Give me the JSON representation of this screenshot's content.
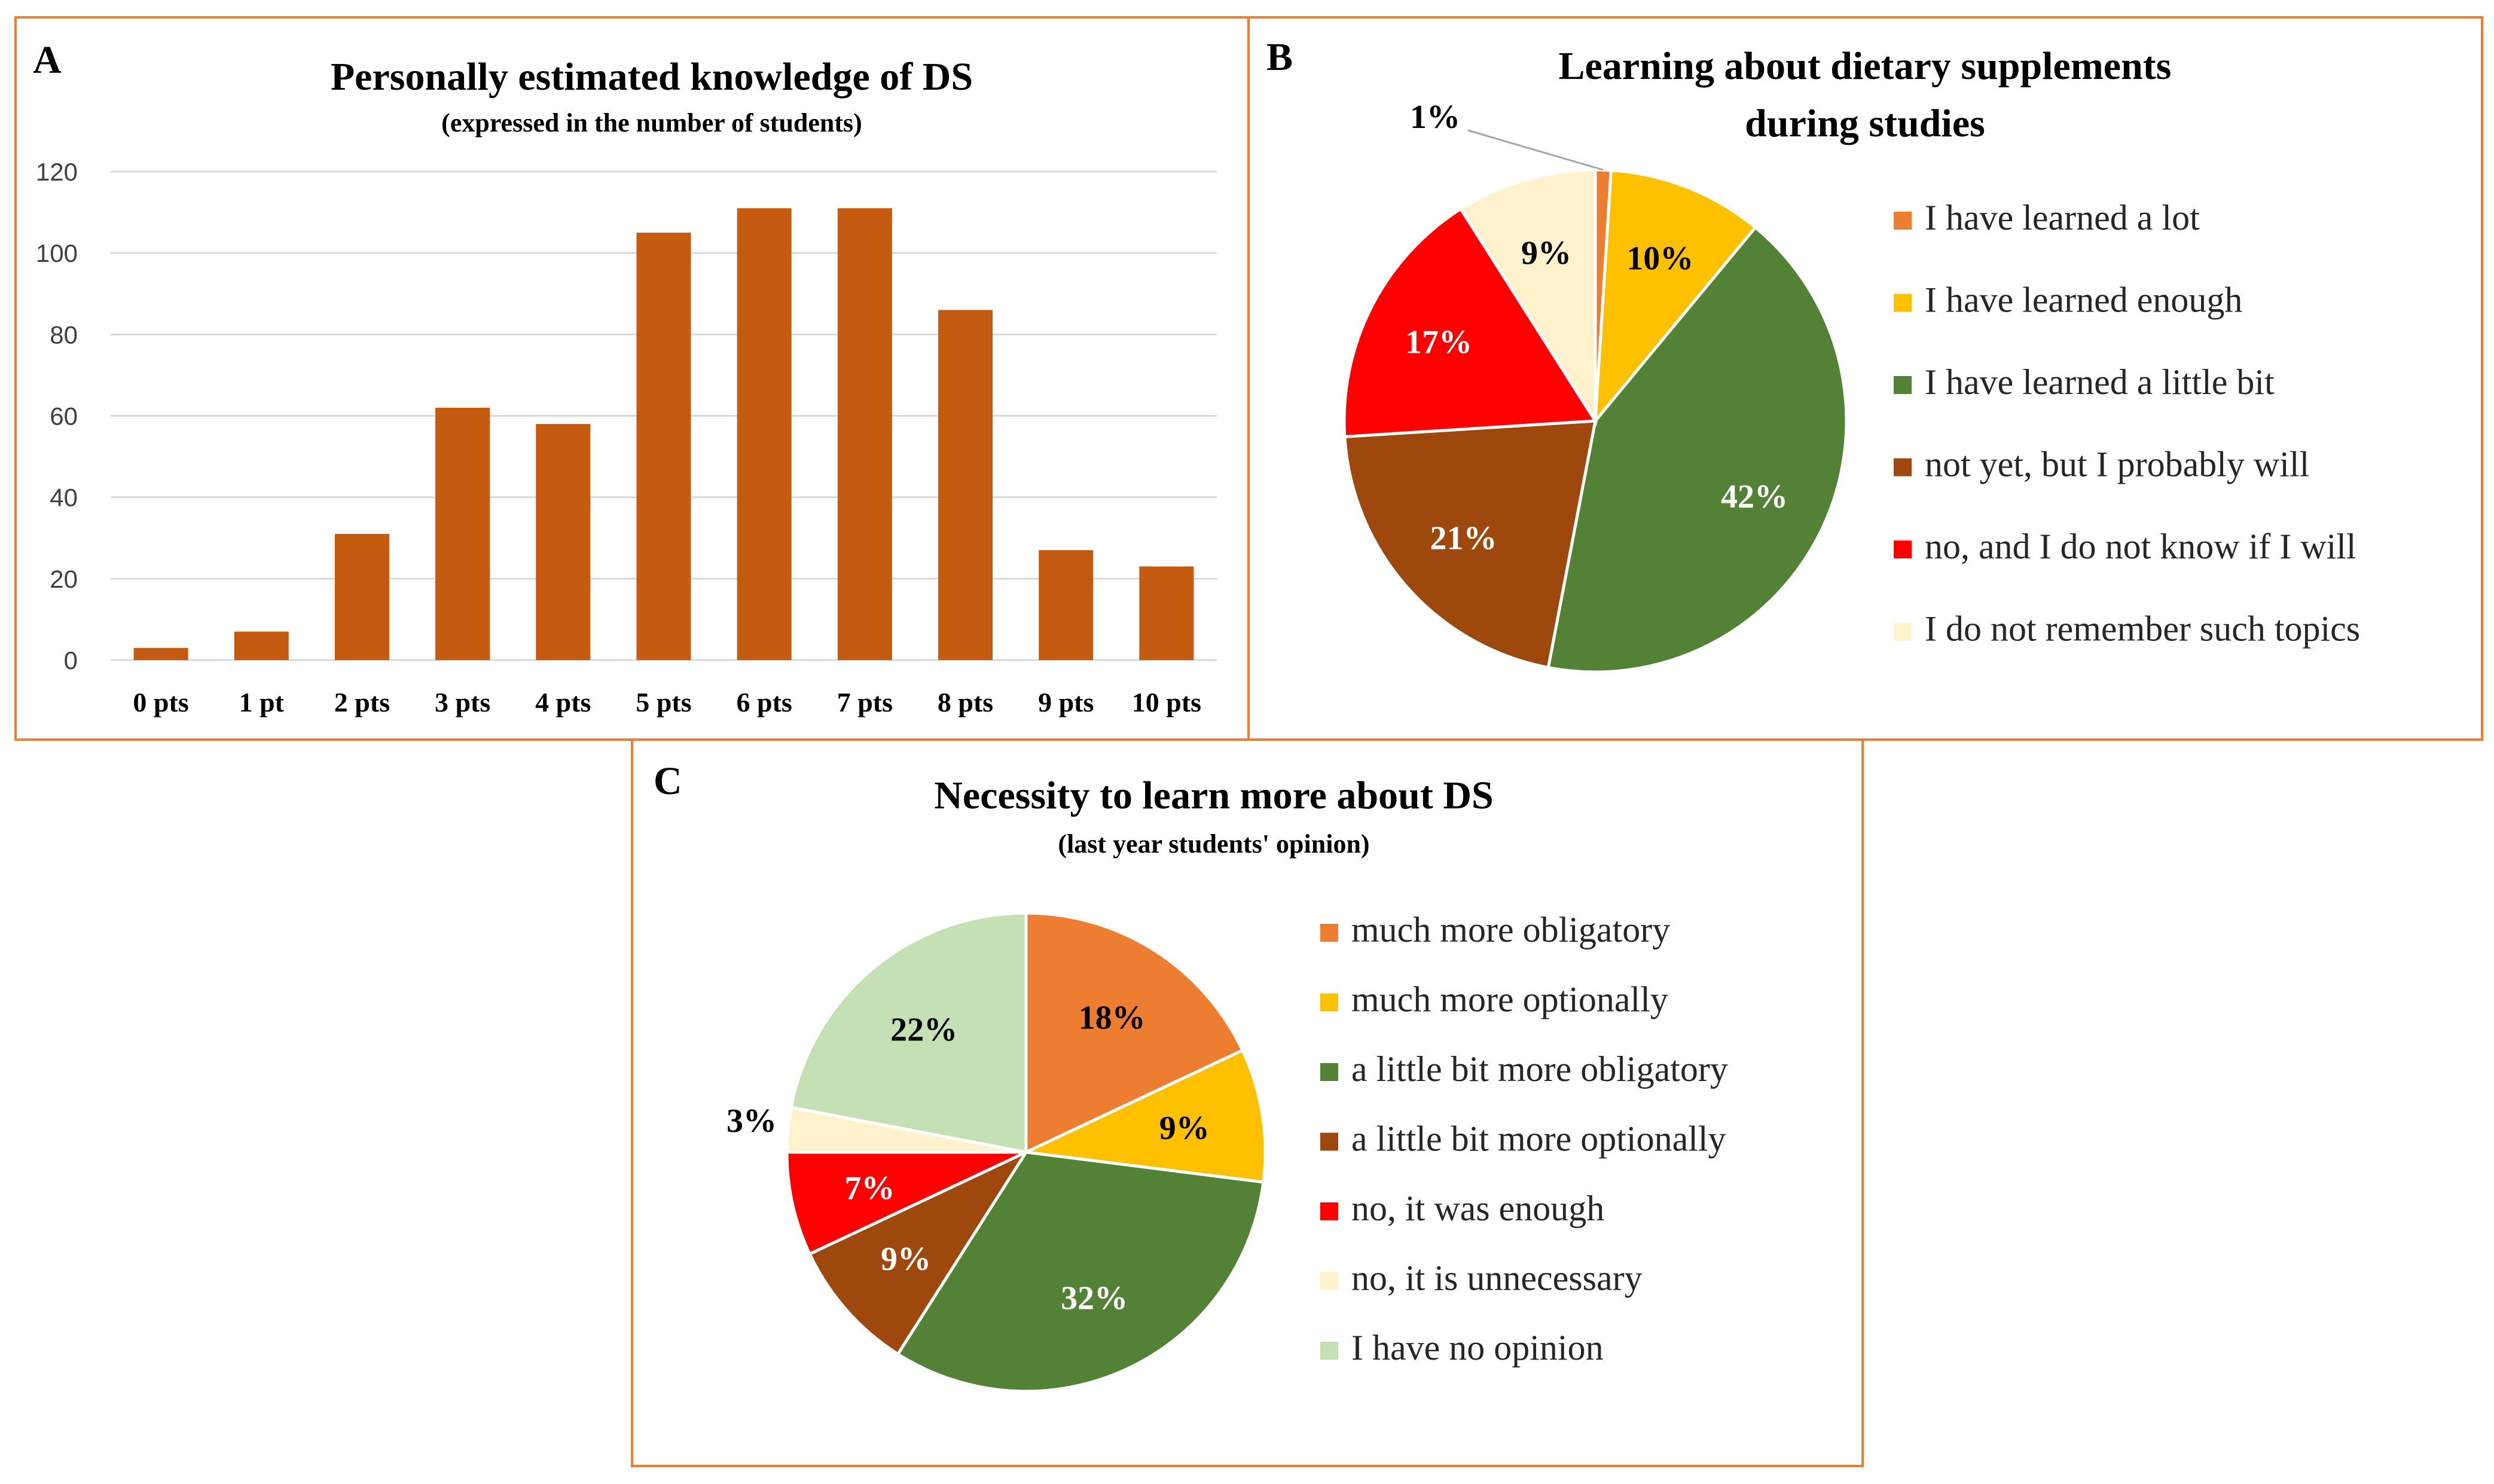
{
  "colors": {
    "frame": "#ED7D31",
    "bar": "#C55A11",
    "grid": "#D9D9D9",
    "text": "#000000"
  },
  "chart_data": [
    {
      "panel": "A",
      "type": "bar",
      "title": "Personally estimated knowledge of DS",
      "subtitle": "(expressed in the number of students)",
      "categories": [
        "0 pts",
        "1 pt",
        "2 pts",
        "3 pts",
        "4 pts",
        "5 pts",
        "6 pts",
        "7 pts",
        "8 pts",
        "9 pts",
        "10 pts"
      ],
      "values": [
        3,
        7,
        31,
        62,
        58,
        105,
        111,
        111,
        86,
        27,
        23
      ],
      "ylim": [
        0,
        120
      ],
      "yticks": [
        "0",
        "20",
        "40",
        "60",
        "80",
        "100",
        "120"
      ],
      "xlabel": "",
      "ylabel": "",
      "grid": true,
      "color": "#C55A11"
    },
    {
      "panel": "B",
      "type": "pie",
      "title": "Learning about dietary supplements",
      "title2": "during studies",
      "legend_position": "right",
      "slices": [
        {
          "label": "I have learned a lot",
          "value": 1,
          "text": "1%",
          "color": "#ED7D31",
          "label_color": "#000000"
        },
        {
          "label": "I have learned enough",
          "value": 10,
          "text": "10%",
          "color": "#FFC000",
          "label_color": "#000000"
        },
        {
          "label": "I have learned a little bit",
          "value": 42,
          "text": "42%",
          "color": "#538135",
          "label_color": "#FFFFFF"
        },
        {
          "label": "not yet, but I probably will",
          "value": 21,
          "text": "21%",
          "color": "#9E480E",
          "label_color": "#FFFFFF"
        },
        {
          "label": "no, and I do not know if I will",
          "value": 17,
          "text": "17%",
          "color": "#FF0000",
          "label_color": "#FFFFFF"
        },
        {
          "label": "I do not remember such topics",
          "value": 9,
          "text": "9%",
          "color": "#FFF2CC",
          "label_color": "#000000"
        }
      ]
    },
    {
      "panel": "C",
      "type": "pie",
      "title": "Necessity to learn more about DS",
      "subtitle": "(last year students' opinion)",
      "legend_position": "right",
      "slices": [
        {
          "label": "much more obligatory",
          "value": 18,
          "text": "18%",
          "color": "#ED7D31",
          "label_color": "#000000"
        },
        {
          "label": "much more optionally",
          "value": 9,
          "text": "9%",
          "color": "#FFC000",
          "label_color": "#000000"
        },
        {
          "label": "a little bit more obligatory",
          "value": 32,
          "text": "32%",
          "color": "#538135",
          "label_color": "#FFFFFF"
        },
        {
          "label": "a little bit more optionally",
          "value": 9,
          "text": "9%",
          "color": "#9E480E",
          "label_color": "#FFFFFF"
        },
        {
          "label": "no, it was enough",
          "value": 7,
          "text": "7%",
          "color": "#FF0000",
          "label_color": "#FFFFFF"
        },
        {
          "label": "no, it is unnecessary",
          "value": 3,
          "text": "3%",
          "color": "#FFF2CC",
          "label_color": "#000000"
        },
        {
          "label": "I have no opinion",
          "value": 22,
          "text": "22%",
          "color": "#C5E0B4",
          "label_color": "#000000"
        }
      ]
    }
  ]
}
